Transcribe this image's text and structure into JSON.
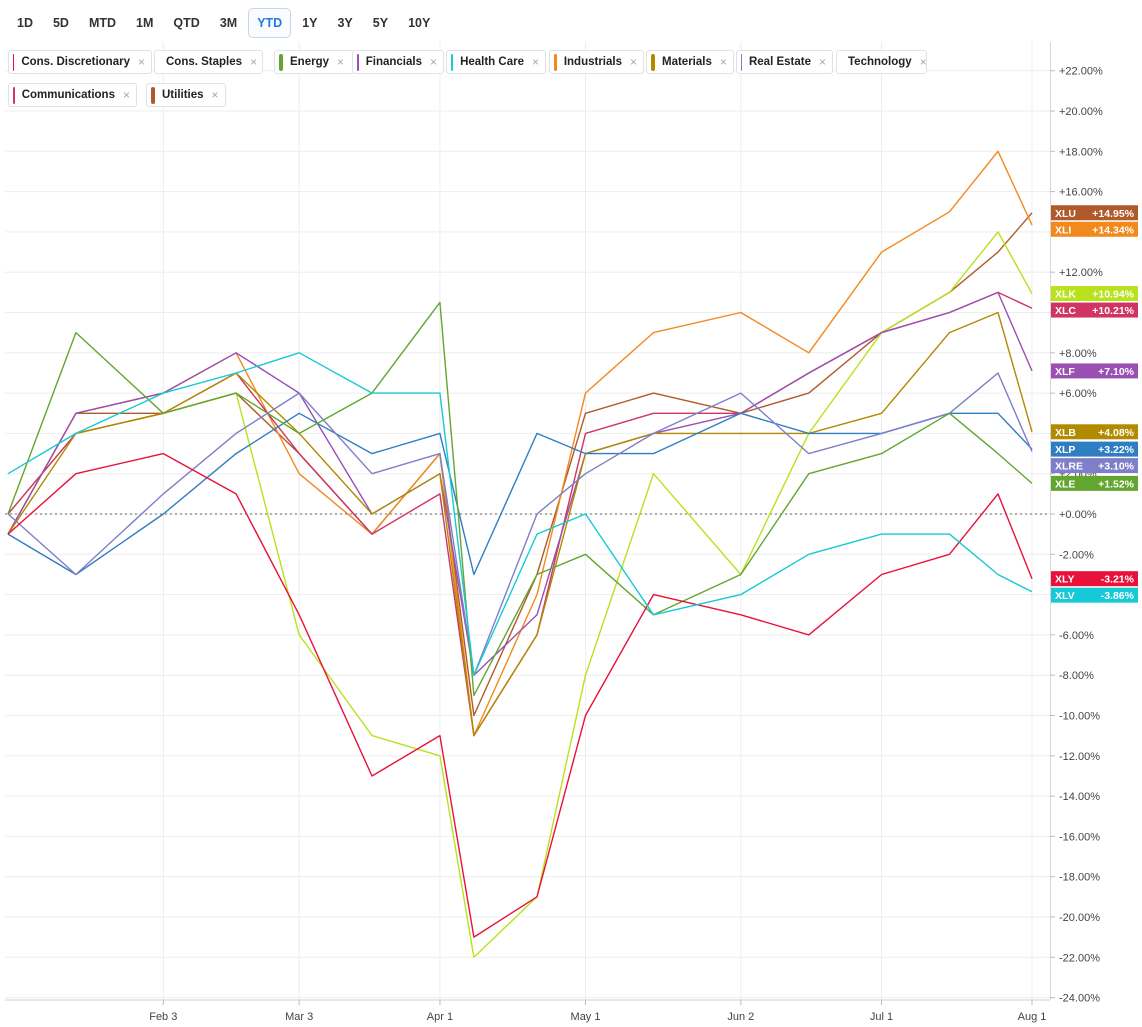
{
  "range_buttons": [
    "1D",
    "5D",
    "MTD",
    "1M",
    "QTD",
    "3M",
    "YTD",
    "1Y",
    "3Y",
    "5Y",
    "10Y"
  ],
  "active_range": "YTD",
  "legend": [
    {
      "label": "Cons. Discretionary",
      "color": "#e8113a"
    },
    {
      "label": "Cons. Staples",
      "color": "#2f7ec2"
    },
    {
      "label": "Energy",
      "color": "#62a630"
    },
    {
      "label": "Financials",
      "color": "#9a4fb3"
    },
    {
      "label": "Health Care",
      "color": "#16c9d6"
    },
    {
      "label": "Industrials",
      "color": "#f2891d"
    },
    {
      "label": "Materials",
      "color": "#b28a00"
    },
    {
      "label": "Real Estate",
      "color": "#7f7fc9"
    },
    {
      "label": "Technology",
      "color": "#b8e21c"
    },
    {
      "label": "Communications",
      "color": "#cf3463"
    },
    {
      "label": "Utilities",
      "color": "#b05a2b"
    }
  ],
  "legend_close_glyph": "×",
  "chart_data": {
    "type": "line",
    "x_tick_labels": [
      "Feb 3",
      "Mar 3",
      "Apr 1",
      "May 1",
      "Jun 2",
      "Jul 1",
      "Aug 1"
    ],
    "y_ticks": [
      22,
      20,
      18,
      16,
      14,
      12,
      10,
      8,
      6,
      4,
      2,
      0,
      -2,
      -4,
      -6,
      -8,
      -10,
      -12,
      -14,
      -16,
      -18,
      -20,
      -22,
      -24
    ],
    "y_tick_labels": [
      "+22.00%",
      "+20.00%",
      "+18.00%",
      "+16.00%",
      "+14.00%",
      "+12.00%",
      "+10.00%",
      "+8.00%",
      "+6.00%",
      "+4.00%",
      "+2.00%",
      "+0.00%",
      "-2.00%",
      "-4.00%",
      "-6.00%",
      "-8.00%",
      "-10.00%",
      "-12.00%",
      "-14.00%",
      "-16.00%",
      "-18.00%",
      "-20.00%",
      "-22.00%",
      "-24.00%"
    ],
    "ylim": [
      -24,
      24
    ],
    "zero_line": true,
    "series": [
      {
        "ticker": "XLU",
        "name": "Utilities",
        "color": "#b05a2b",
        "final_label": "+14.95%",
        "points": [
          [
            "Jan 2",
            -1
          ],
          [
            "Jan 16",
            5
          ],
          [
            "Feb 3",
            5
          ],
          [
            "Feb 18",
            6
          ],
          [
            "Mar 3",
            3
          ],
          [
            "Mar 18",
            -1
          ],
          [
            "Apr 1",
            3
          ],
          [
            "Apr 8",
            -10
          ],
          [
            "Apr 21",
            -3
          ],
          [
            "May 1",
            5
          ],
          [
            "May 15",
            6
          ],
          [
            "Jun 2",
            5
          ],
          [
            "Jun 16",
            6
          ],
          [
            "Jul 1",
            9
          ],
          [
            "Jul 15",
            11
          ],
          [
            "Jul 25",
            13
          ],
          [
            "Aug 1",
            14.95
          ]
        ]
      },
      {
        "ticker": "XLI",
        "name": "Industrials",
        "color": "#f2891d",
        "final_label": "+14.34%",
        "points": [
          [
            "Jan 2",
            -1
          ],
          [
            "Jan 16",
            5
          ],
          [
            "Feb 3",
            6
          ],
          [
            "Feb 18",
            8
          ],
          [
            "Mar 3",
            2
          ],
          [
            "Mar 18",
            -1
          ],
          [
            "Apr 1",
            3
          ],
          [
            "Apr 8",
            -11
          ],
          [
            "Apr 21",
            -4
          ],
          [
            "May 1",
            6
          ],
          [
            "May 15",
            9
          ],
          [
            "Jun 2",
            10
          ],
          [
            "Jun 16",
            8
          ],
          [
            "Jul 1",
            13
          ],
          [
            "Jul 15",
            15
          ],
          [
            "Jul 25",
            18
          ],
          [
            "Aug 1",
            14.34
          ]
        ]
      },
      {
        "ticker": "XLK",
        "name": "Technology",
        "color": "#b8e21c",
        "final_label": "+10.94%",
        "points": [
          [
            "Jan 2",
            0
          ],
          [
            "Jan 16",
            4
          ],
          [
            "Feb 3",
            5
          ],
          [
            "Feb 18",
            6
          ],
          [
            "Mar 3",
            -6
          ],
          [
            "Mar 18",
            -11
          ],
          [
            "Apr 1",
            -12
          ],
          [
            "Apr 8",
            -22
          ],
          [
            "Apr 21",
            -19
          ],
          [
            "May 1",
            -8
          ],
          [
            "May 15",
            2
          ],
          [
            "Jun 2",
            -3
          ],
          [
            "Jun 16",
            4
          ],
          [
            "Jul 1",
            9
          ],
          [
            "Jul 15",
            11
          ],
          [
            "Jul 25",
            14
          ],
          [
            "Aug 1",
            10.94
          ]
        ]
      },
      {
        "ticker": "XLC",
        "name": "Communications",
        "color": "#cf3463",
        "final_label": "+10.21%",
        "points": [
          [
            "Jan 2",
            0
          ],
          [
            "Jan 16",
            4
          ],
          [
            "Feb 3",
            5
          ],
          [
            "Feb 18",
            7
          ],
          [
            "Mar 3",
            3
          ],
          [
            "Mar 18",
            -1
          ],
          [
            "Apr 1",
            1
          ],
          [
            "Apr 8",
            -11
          ],
          [
            "Apr 21",
            -6
          ],
          [
            "May 1",
            4
          ],
          [
            "May 15",
            5
          ],
          [
            "Jun 2",
            5
          ],
          [
            "Jun 16",
            7
          ],
          [
            "Jul 1",
            9
          ],
          [
            "Jul 15",
            10
          ],
          [
            "Jul 25",
            11
          ],
          [
            "Aug 1",
            10.21
          ]
        ]
      },
      {
        "ticker": "XLF",
        "name": "Financials",
        "color": "#9a4fb3",
        "final_label": "+7.10%",
        "points": [
          [
            "Jan 2",
            -1
          ],
          [
            "Jan 16",
            5
          ],
          [
            "Feb 3",
            6
          ],
          [
            "Feb 18",
            8
          ],
          [
            "Mar 3",
            6
          ],
          [
            "Mar 18",
            0
          ],
          [
            "Apr 1",
            2
          ],
          [
            "Apr 8",
            -8
          ],
          [
            "Apr 21",
            -5
          ],
          [
            "May 1",
            3
          ],
          [
            "May 15",
            4
          ],
          [
            "Jun 2",
            5
          ],
          [
            "Jun 16",
            7
          ],
          [
            "Jul 1",
            9
          ],
          [
            "Jul 15",
            10
          ],
          [
            "Jul 25",
            11
          ],
          [
            "Aug 1",
            7.1
          ]
        ]
      },
      {
        "ticker": "XLB",
        "name": "Materials",
        "color": "#b28a00",
        "final_label": "+4.08%",
        "points": [
          [
            "Jan 2",
            -1
          ],
          [
            "Jan 16",
            4
          ],
          [
            "Feb 3",
            5
          ],
          [
            "Feb 18",
            7
          ],
          [
            "Mar 3",
            4
          ],
          [
            "Mar 18",
            0
          ],
          [
            "Apr 1",
            2
          ],
          [
            "Apr 8",
            -11
          ],
          [
            "Apr 21",
            -6
          ],
          [
            "May 1",
            3
          ],
          [
            "May 15",
            4
          ],
          [
            "Jun 2",
            4
          ],
          [
            "Jun 16",
            4
          ],
          [
            "Jul 1",
            5
          ],
          [
            "Jul 15",
            9
          ],
          [
            "Jul 25",
            10
          ],
          [
            "Aug 1",
            4.08
          ]
        ]
      },
      {
        "ticker": "XLP",
        "name": "Cons. Staples",
        "color": "#2f7ec2",
        "final_label": "+3.22%",
        "points": [
          [
            "Jan 2",
            -1
          ],
          [
            "Jan 16",
            -3
          ],
          [
            "Feb 3",
            0
          ],
          [
            "Feb 18",
            3
          ],
          [
            "Mar 3",
            5
          ],
          [
            "Mar 18",
            3
          ],
          [
            "Apr 1",
            4
          ],
          [
            "Apr 8",
            -3
          ],
          [
            "Apr 21",
            4
          ],
          [
            "May 1",
            3
          ],
          [
            "May 15",
            3
          ],
          [
            "Jun 2",
            5
          ],
          [
            "Jun 16",
            4
          ],
          [
            "Jul 1",
            4
          ],
          [
            "Jul 15",
            5
          ],
          [
            "Jul 25",
            5
          ],
          [
            "Aug 1",
            3.22
          ]
        ]
      },
      {
        "ticker": "XLRE",
        "name": "Real Estate",
        "color": "#7f7fc9",
        "final_label": "+3.10%",
        "points": [
          [
            "Jan 2",
            0
          ],
          [
            "Jan 16",
            -3
          ],
          [
            "Feb 3",
            1
          ],
          [
            "Feb 18",
            4
          ],
          [
            "Mar 3",
            6
          ],
          [
            "Mar 18",
            2
          ],
          [
            "Apr 1",
            3
          ],
          [
            "Apr 8",
            -8
          ],
          [
            "Apr 21",
            0
          ],
          [
            "May 1",
            2
          ],
          [
            "May 15",
            4
          ],
          [
            "Jun 2",
            6
          ],
          [
            "Jun 16",
            3
          ],
          [
            "Jul 1",
            4
          ],
          [
            "Jul 15",
            5
          ],
          [
            "Jul 25",
            7
          ],
          [
            "Aug 1",
            3.1
          ]
        ]
      },
      {
        "ticker": "XLE",
        "name": "Energy",
        "color": "#62a630",
        "final_label": "+1.52%",
        "points": [
          [
            "Jan 2",
            0
          ],
          [
            "Jan 16",
            9
          ],
          [
            "Feb 3",
            5
          ],
          [
            "Feb 18",
            6
          ],
          [
            "Mar 3",
            4
          ],
          [
            "Mar 18",
            6
          ],
          [
            "Apr 1",
            10.5
          ],
          [
            "Apr 8",
            -9
          ],
          [
            "Apr 21",
            -3
          ],
          [
            "May 1",
            -2
          ],
          [
            "May 15",
            -5
          ],
          [
            "Jun 2",
            -3
          ],
          [
            "Jun 16",
            2
          ],
          [
            "Jul 1",
            3
          ],
          [
            "Jul 15",
            5
          ],
          [
            "Jul 25",
            3
          ],
          [
            "Aug 1",
            1.52
          ]
        ]
      },
      {
        "ticker": "XLY",
        "name": "Cons. Discretionary",
        "color": "#e8113a",
        "final_label": "-3.21%",
        "points": [
          [
            "Jan 2",
            -1
          ],
          [
            "Jan 16",
            2
          ],
          [
            "Feb 3",
            3
          ],
          [
            "Feb 18",
            1
          ],
          [
            "Mar 3",
            -5
          ],
          [
            "Mar 18",
            -13
          ],
          [
            "Apr 1",
            -11
          ],
          [
            "Apr 8",
            -21
          ],
          [
            "Apr 21",
            -19
          ],
          [
            "May 1",
            -10
          ],
          [
            "May 15",
            -4
          ],
          [
            "Jun 2",
            -5
          ],
          [
            "Jun 16",
            -6
          ],
          [
            "Jul 1",
            -3
          ],
          [
            "Jul 15",
            -2
          ],
          [
            "Jul 25",
            1
          ],
          [
            "Aug 1",
            -3.21
          ]
        ]
      },
      {
        "ticker": "XLV",
        "name": "Health Care",
        "color": "#16c9d6",
        "final_label": "-3.86%",
        "points": [
          [
            "Jan 2",
            2
          ],
          [
            "Jan 16",
            4
          ],
          [
            "Feb 3",
            6
          ],
          [
            "Feb 18",
            7
          ],
          [
            "Mar 3",
            8
          ],
          [
            "Mar 18",
            6
          ],
          [
            "Apr 1",
            6
          ],
          [
            "Apr 8",
            -8
          ],
          [
            "Apr 21",
            -1
          ],
          [
            "May 1",
            0
          ],
          [
            "May 15",
            -5
          ],
          [
            "Jun 2",
            -4
          ],
          [
            "Jun 16",
            -2
          ],
          [
            "Jul 1",
            -1
          ],
          [
            "Jul 15",
            -1
          ],
          [
            "Jul 25",
            -3
          ],
          [
            "Aug 1",
            -3.86
          ]
        ]
      }
    ]
  }
}
